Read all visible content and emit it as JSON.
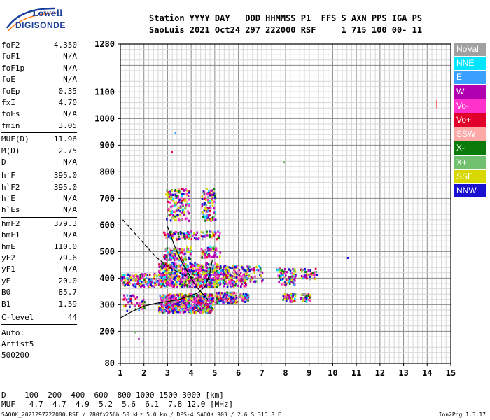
{
  "logo": {
    "line1": "Lowell",
    "line2": "DIGISONDE"
  },
  "header": {
    "labels": "Station YYYY DAY   DDD HHMMSS P1  FFS S AXN PPS IGA PS",
    "values": "SaoLuis 2021 Oct24 297 222000 RSF     1 715 100 00- 11"
  },
  "params": [
    {
      "k": "foF2",
      "v": "4.350"
    },
    {
      "k": "foF1",
      "v": "N/A"
    },
    {
      "k": "foF1p",
      "v": "N/A"
    },
    {
      "k": "foE",
      "v": "N/A"
    },
    {
      "k": "foEp",
      "v": "0.35"
    },
    {
      "k": "fxI",
      "v": "4.70"
    },
    {
      "k": "foEs",
      "v": "N/A"
    },
    {
      "k": "fmin",
      "v": "3.05"
    },
    {
      "sep": true
    },
    {
      "k": "MUF(D)",
      "v": "11.96"
    },
    {
      "k": "M(D)",
      "v": "2.75"
    },
    {
      "k": "D",
      "v": "N/A"
    },
    {
      "sep": true
    },
    {
      "k": "h`F",
      "v": "395.0"
    },
    {
      "k": "h`F2",
      "v": "395.0"
    },
    {
      "k": "h`E",
      "v": "N/A"
    },
    {
      "k": "h`Es",
      "v": "N/A"
    },
    {
      "sep": true
    },
    {
      "k": "hmF2",
      "v": "379.3"
    },
    {
      "k": "hmF1",
      "v": "N/A"
    },
    {
      "k": "hmE",
      "v": "110.0"
    },
    {
      "k": "yF2",
      "v": "79.6"
    },
    {
      "k": "yF1",
      "v": "N/A"
    },
    {
      "k": "yE",
      "v": "20.0"
    },
    {
      "k": "B0",
      "v": "85.7"
    },
    {
      "k": "B1",
      "v": "1.59"
    },
    {
      "sep": true
    },
    {
      "k": "C-level",
      "v": "44"
    },
    {
      "sep": true
    }
  ],
  "auto": [
    "Auto:",
    "Artist5",
    "500200"
  ],
  "legend": [
    {
      "label": "NoVal",
      "color": "#a0a0a0"
    },
    {
      "label": "NNE",
      "color": "#00e5ff"
    },
    {
      "label": "E",
      "color": "#3aa0ff"
    },
    {
      "label": "W",
      "color": "#b000b0"
    },
    {
      "label": "Vo-",
      "color": "#ff33cc"
    },
    {
      "label": "Vo+",
      "color": "#e0002a"
    },
    {
      "label": "SSW",
      "color": "#ffa8a8"
    },
    {
      "label": "X-",
      "color": "#0a7a0a"
    },
    {
      "label": "X+",
      "color": "#70c070"
    },
    {
      "label": "SSE",
      "color": "#d8d800"
    },
    {
      "label": "NNW",
      "color": "#1a10d0"
    }
  ],
  "mufTable": {
    "dLine": "D    100  200  400  600  800 1000 1500 3000 [km]",
    "mufLine": "MUF   4.7  4.7  4.9  5.2  5.6  6.1  7.8 12.0 [MHz]"
  },
  "footer": {
    "left": "SAOOK_2021297222000.RSF / 280fx256h 50 kHz 5.0 km / DPS-4 SAOOK 903 / 2.6 S 315.8 E",
    "right": "Ion2Png 1.3.17"
  },
  "chart_data": {
    "type": "scatter",
    "title": "",
    "xlabel": "",
    "ylabel": "",
    "xlim": [
      1,
      15
    ],
    "ylim": [
      80,
      1280
    ],
    "x_ticks": [
      1,
      2,
      3,
      4,
      5,
      6,
      7,
      8,
      9,
      10,
      11,
      12,
      13,
      14,
      15
    ],
    "y_ticks": [
      80,
      200,
      300,
      400,
      500,
      600,
      700,
      800,
      900,
      1000,
      1100,
      1280
    ],
    "grid": true,
    "legend_position": "right",
    "clusters": [
      {
        "x": [
          2.6,
          3.1
        ],
        "y": [
          275,
          340
        ],
        "n": 140
      },
      {
        "x": [
          3.0,
          4.9
        ],
        "y": [
          275,
          345
        ],
        "n": 520
      },
      {
        "x": [
          5.0,
          5.9
        ],
        "y": [
          310,
          350
        ],
        "n": 150
      },
      {
        "x": [
          6.0,
          6.4
        ],
        "y": [
          315,
          345
        ],
        "n": 50
      },
      {
        "x": [
          7.85,
          8.4
        ],
        "y": [
          315,
          345
        ],
        "n": 50
      },
      {
        "x": [
          8.6,
          9.0
        ],
        "y": [
          315,
          345
        ],
        "n": 40
      },
      {
        "x": [
          1.0,
          2.6
        ],
        "y": [
          370,
          420
        ],
        "n": 140
      },
      {
        "x": [
          2.6,
          5.1
        ],
        "y": [
          370,
          460
        ],
        "n": 620
      },
      {
        "x": [
          5.0,
          6.3
        ],
        "y": [
          370,
          450
        ],
        "n": 240
      },
      {
        "x": [
          6.3,
          7.0
        ],
        "y": [
          390,
          450
        ],
        "n": 50
      },
      {
        "x": [
          7.6,
          8.4
        ],
        "y": [
          380,
          440
        ],
        "n": 90
      },
      {
        "x": [
          8.6,
          9.3
        ],
        "y": [
          400,
          440
        ],
        "n": 40
      },
      {
        "x": [
          2.8,
          4.0
        ],
        "y": [
          470,
          520
        ],
        "n": 110
      },
      {
        "x": [
          4.4,
          5.2
        ],
        "y": [
          480,
          520
        ],
        "n": 60
      },
      {
        "x": [
          2.8,
          5.2
        ],
        "y": [
          550,
          580
        ],
        "n": 110
      },
      {
        "x": [
          2.9,
          3.9
        ],
        "y": [
          620,
          740
        ],
        "n": 150
      },
      {
        "x": [
          4.4,
          5.0
        ],
        "y": [
          620,
          740
        ],
        "n": 110
      },
      {
        "x": [
          1.1,
          2.0
        ],
        "y": [
          280,
          340
        ],
        "n": 40
      }
    ],
    "trace_extra": [
      {
        "x": 3.15,
        "y": 880
      },
      {
        "x": 3.3,
        "y": 950
      },
      {
        "x": 7.9,
        "y": 840
      },
      {
        "x": 10.6,
        "y": 480
      },
      {
        "x": 1.6,
        "y": 200
      },
      {
        "x": 1.75,
        "y": 175
      }
    ],
    "red_bar": {
      "x": 14.4,
      "y": [
        1040,
        1070
      ]
    },
    "curves": [
      {
        "name": "",
        "style": "dashed",
        "points": [
          [
            1.1,
            620
          ],
          [
            1.5,
            580
          ],
          [
            2.0,
            530
          ],
          [
            2.5,
            480
          ],
          [
            3.0,
            445
          ],
          [
            3.6,
            415
          ],
          [
            4.2,
            398
          ],
          [
            4.8,
            395
          ]
        ]
      },
      {
        "name": "",
        "style": "solid",
        "points": [
          [
            1.0,
            250
          ],
          [
            1.5,
            275
          ],
          [
            2.0,
            295
          ],
          [
            2.5,
            305
          ],
          [
            3.0,
            312
          ],
          [
            3.5,
            320
          ],
          [
            4.0,
            335
          ],
          [
            4.3,
            345
          ],
          [
            4.6,
            370
          ],
          [
            4.8,
            420
          ],
          [
            4.9,
            470
          ]
        ]
      },
      {
        "name": "",
        "style": "solid",
        "points": [
          [
            3.0,
            595
          ],
          [
            3.3,
            520
          ],
          [
            3.6,
            460
          ],
          [
            3.9,
            415
          ],
          [
            4.2,
            370
          ],
          [
            4.5,
            340
          ],
          [
            4.7,
            320
          ]
        ]
      }
    ]
  }
}
